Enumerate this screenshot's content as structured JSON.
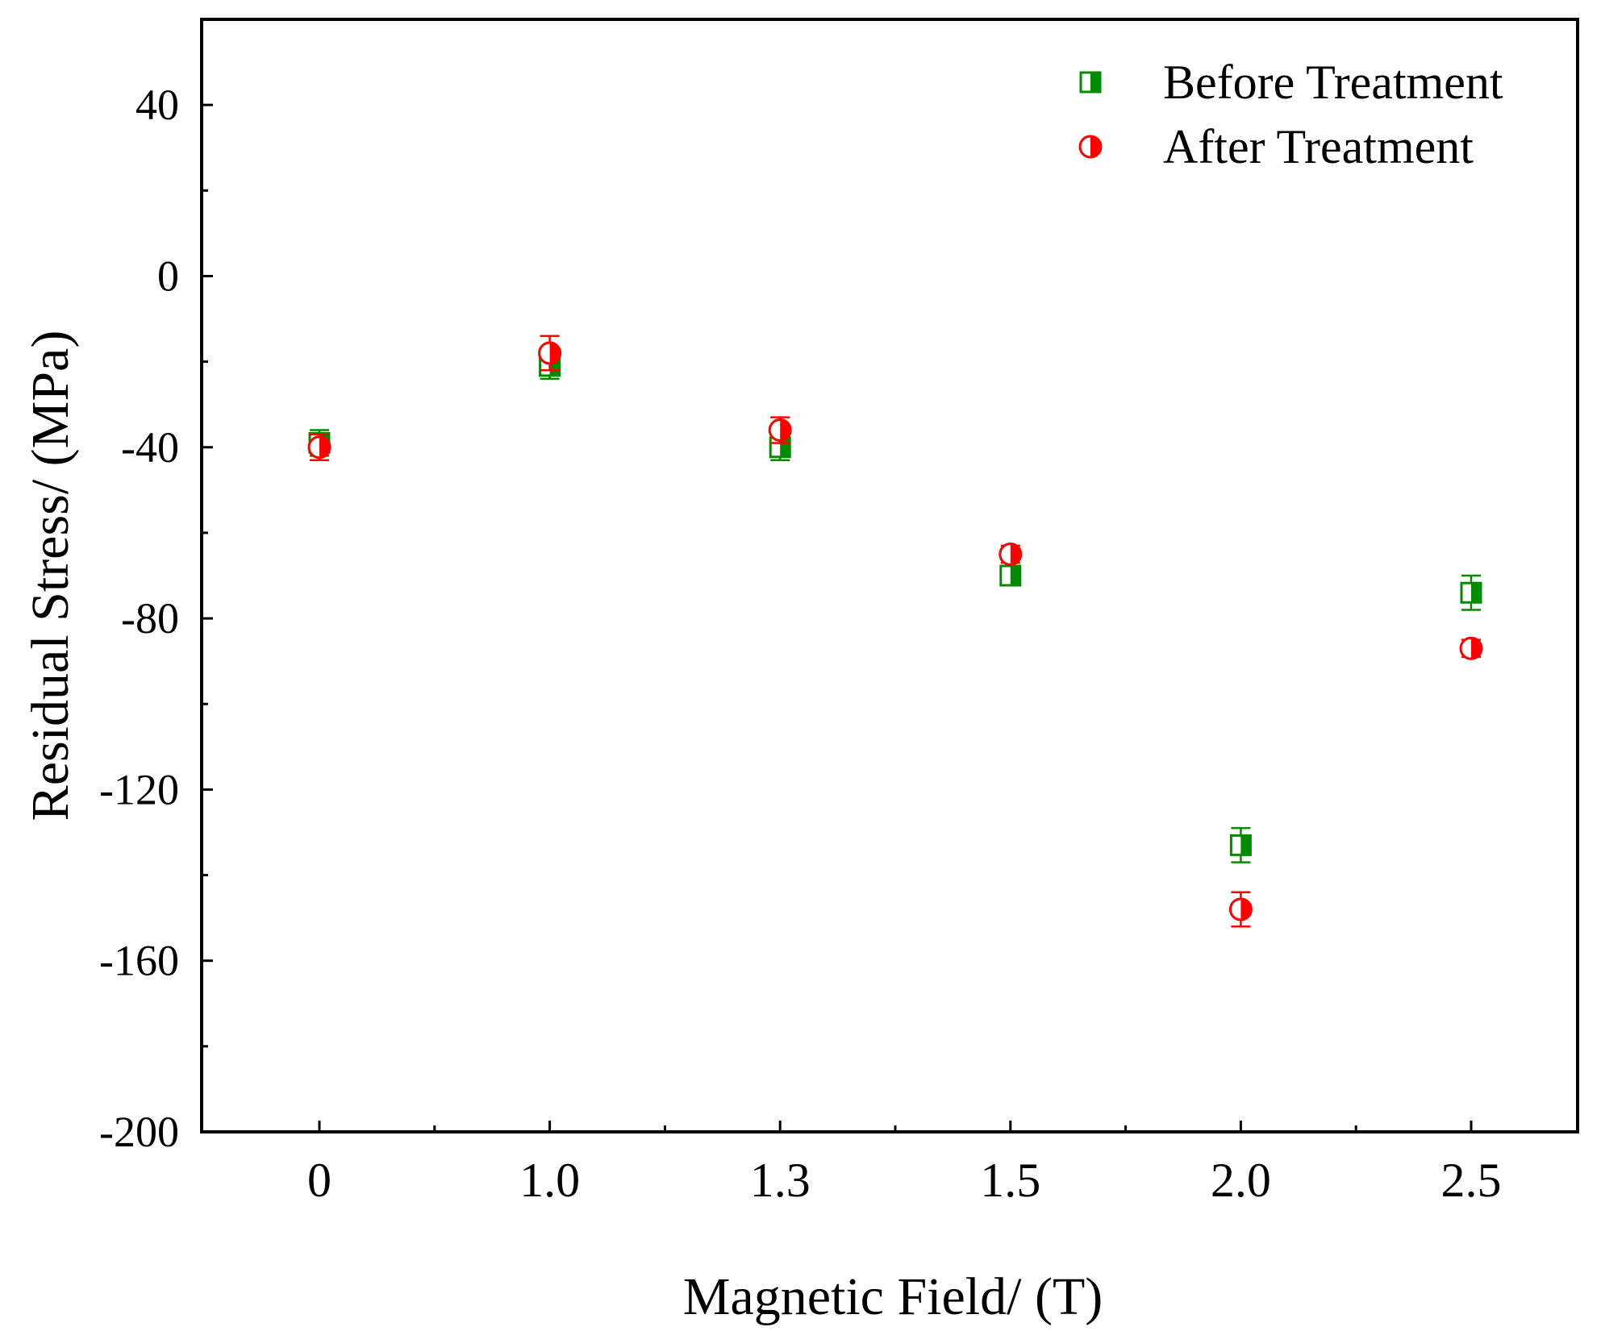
{
  "chart_data": {
    "type": "scatter",
    "xlabel": "Magnetic Field/ (T)",
    "ylabel": "Residual Stress/ (MPa)",
    "categories": [
      "0",
      "1.0",
      "1.3",
      "1.5",
      "2.0",
      "2.5"
    ],
    "ylim": [
      -200,
      60
    ],
    "yticks": [
      40,
      0,
      -40,
      -80,
      -120,
      -160,
      -200
    ],
    "ytick_labels": [
      "40",
      "0",
      "-40",
      "-80",
      "-120",
      "-160",
      "-200"
    ],
    "grid": false,
    "legend_position": "top-right",
    "series": [
      {
        "name": "Before Treatment",
        "marker": "half-filled-square",
        "color": "#008c00",
        "values": [
          -39,
          -21,
          -40,
          -70,
          -133,
          -74
        ],
        "errors": [
          3,
          3,
          3,
          2,
          4,
          4
        ]
      },
      {
        "name": "After Treatment",
        "marker": "half-filled-circle",
        "color": "#ff0000",
        "values": [
          -40,
          -18,
          -36,
          -65,
          -148,
          -87
        ],
        "errors": [
          3,
          4,
          3,
          2,
          4,
          2
        ]
      }
    ]
  }
}
